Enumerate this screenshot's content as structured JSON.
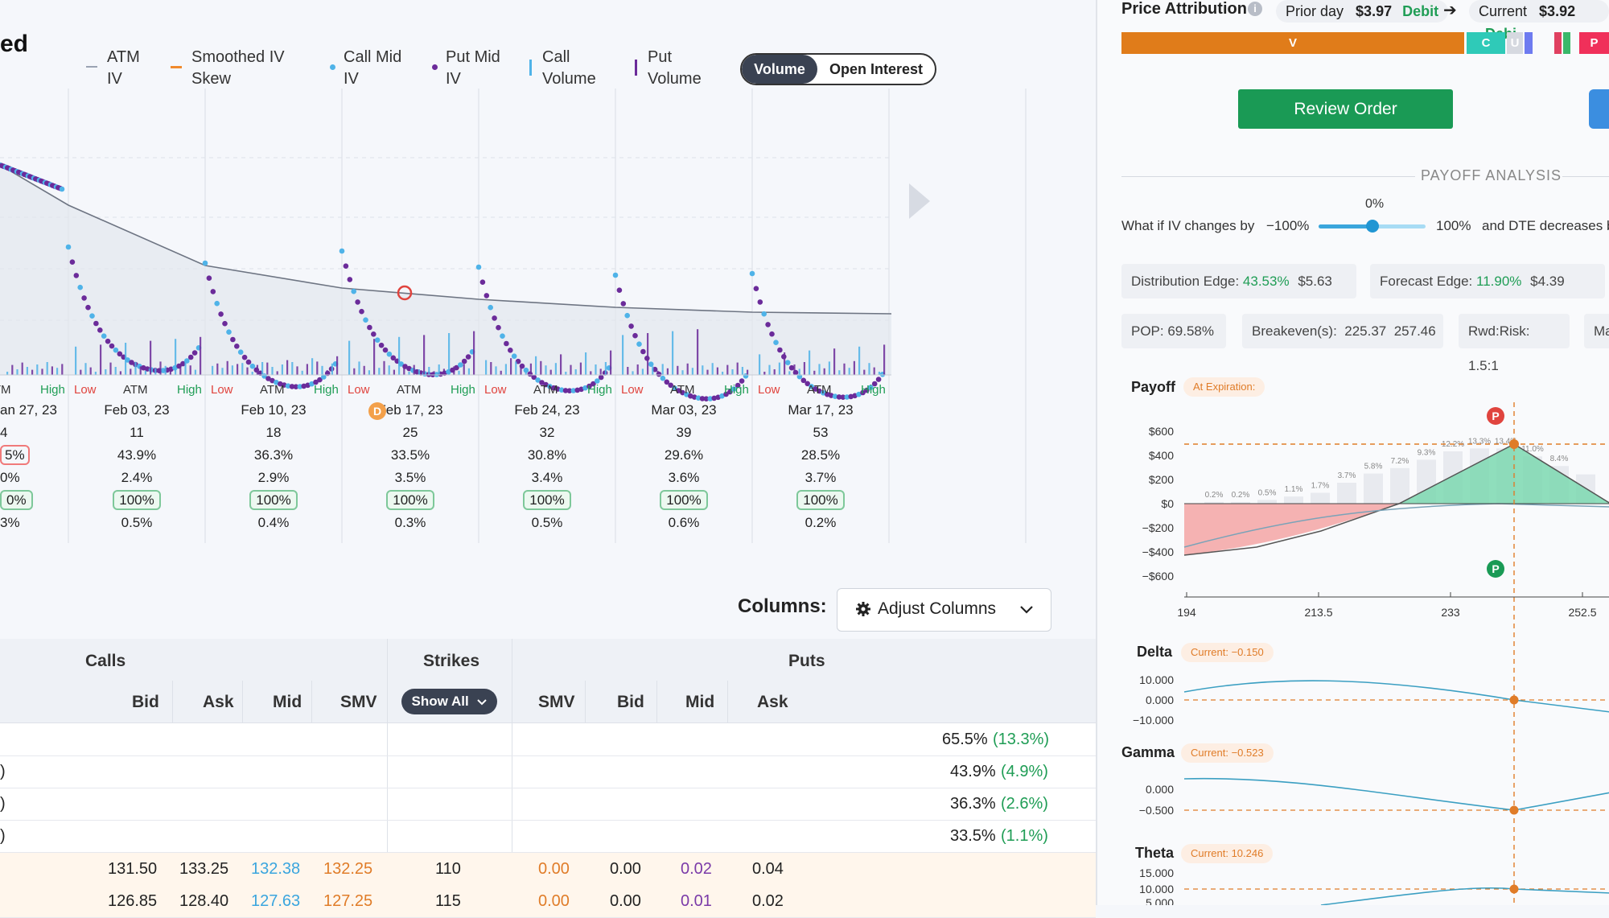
{
  "header": {
    "title_fragment": "ed"
  },
  "legend": [
    {
      "name": "atm-iv",
      "line1": "ATM",
      "line2": "IV",
      "color": "#9aa3b3"
    },
    {
      "name": "smoothed-iv-skew",
      "line1": "Smoothed IV",
      "line2": "Skew",
      "color": "#f08a2c"
    },
    {
      "name": "call-mid-iv",
      "line1": "Call Mid",
      "line2": "IV",
      "color": "#4fb3e8"
    },
    {
      "name": "put-mid-iv",
      "line1": "Put Mid",
      "line2": "IV",
      "color": "#6b2b9a"
    },
    {
      "name": "call-volume",
      "line1": "Call",
      "line2": "Volume",
      "color": "#4fb3e8"
    },
    {
      "name": "put-volume",
      "line1": "Put",
      "line2": "Volume",
      "color": "#6b2b9a"
    }
  ],
  "toggle": {
    "volume": "Volume",
    "open_interest": "Open Interest"
  },
  "strike_labels": {
    "low": "Low",
    "atm": "ATM",
    "high": "High"
  },
  "expirations": [
    {
      "date": "an 27, 23",
      "dte": "4",
      "iv": "5%",
      "ivchg": "0%",
      "pct": "0%",
      "move": "3%"
    },
    {
      "date": "Feb 03, 23",
      "dte": "11",
      "iv": "43.9%",
      "ivchg": "2.4%",
      "pct": "100%",
      "move": "0.5%"
    },
    {
      "date": "Feb 10, 23",
      "dte": "18",
      "iv": "36.3%",
      "ivchg": "2.9%",
      "pct": "100%",
      "move": "0.4%"
    },
    {
      "date": "Feb 17, 23",
      "dte": "25",
      "iv": "33.5%",
      "ivchg": "3.5%",
      "pct": "100%",
      "move": "0.3%"
    },
    {
      "date": "Feb 24, 23",
      "dte": "32",
      "iv": "30.8%",
      "ivchg": "3.4%",
      "pct": "100%",
      "move": "0.5%"
    },
    {
      "date": "Mar 03, 23",
      "dte": "39",
      "iv": "29.6%",
      "ivchg": "3.6%",
      "pct": "100%",
      "move": "0.6%"
    },
    {
      "date": "Mar 17, 23",
      "dte": "53",
      "iv": "28.5%",
      "ivchg": "3.7%",
      "pct": "100%",
      "move": "0.2%"
    }
  ],
  "dividend_badge": "D",
  "columns": {
    "label": "Columns:",
    "adjust": "Adjust Columns"
  },
  "chain": {
    "calls_header": "Calls",
    "strikes_header": "Strikes",
    "puts_header": "Puts",
    "call_cols": [
      "Bid",
      "Ask",
      "Mid",
      "SMV"
    ],
    "put_cols": [
      "SMV",
      "Bid",
      "Mid",
      "Ask"
    ],
    "show_all": "Show All",
    "summary_rows": [
      {
        "left": "",
        "iv": "65.5%",
        "chg": "(13.3%)"
      },
      {
        "left": ")",
        "iv": "43.9%",
        "chg": "(4.9%)"
      },
      {
        "left": ")",
        "iv": "36.3%",
        "chg": "(2.6%)"
      },
      {
        "left": ")",
        "iv": "33.5%",
        "chg": "(1.1%)"
      }
    ],
    "rows": [
      {
        "c_bid": "131.50",
        "c_ask": "133.25",
        "c_mid": "132.38",
        "c_smv": "132.25",
        "strike": "110",
        "p_smv": "0.00",
        "p_bid": "0.00",
        "p_mid": "0.02",
        "p_ask": "0.04"
      },
      {
        "c_bid": "126.85",
        "c_ask": "128.40",
        "c_mid": "127.63",
        "c_smv": "127.25",
        "strike": "115",
        "p_smv": "0.00",
        "p_bid": "0.00",
        "p_mid": "0.01",
        "p_ask": "0.02"
      }
    ]
  },
  "price_attribution": {
    "title": "Price Attribution",
    "prior_label": "Prior day",
    "prior_value": "$3.97",
    "prior_type": "Debit",
    "current_label": "Current",
    "current_value": "$3.92",
    "current_type": "Debi",
    "bar_v": "V",
    "bar_c": "C",
    "bar_u": "U",
    "bar_p": "P"
  },
  "review_order": "Review Order",
  "payoff_analysis": {
    "heading": "PAYOFF ANALYSIS",
    "iv_question": "What if IV changes by",
    "slider_min": "−100%",
    "slider_max": "100%",
    "slider_value": "0%",
    "slider_fraction": 0.5,
    "dte_text": "and DTE decreases b",
    "distribution_edge_label": "Distribution Edge:",
    "distribution_edge_pct": "43.53%",
    "distribution_edge_val": "$5.63",
    "forecast_edge_label": "Forecast Edge:",
    "forecast_edge_pct": "11.90%",
    "forecast_edge_val": "$4.39",
    "pop": "POP: 69.58%",
    "breakevens": "Breakeven(s):  225.37  257.46",
    "rwd_risk": "Rwd:Risk: 1.5:1",
    "ma": "Ma"
  },
  "payoff": {
    "label": "Payoff",
    "badge": "At Expiration:",
    "y_ticks": [
      "$600",
      "$400",
      "$200",
      "$0",
      "−$200",
      "−$400",
      "−$600"
    ],
    "x_ticks": [
      "194",
      "213.5",
      "233",
      "252.5"
    ],
    "dist_labels": [
      "0.2%",
      "0.2%",
      "0.5%",
      "1.1%",
      "1.7%",
      "3.7%",
      "5.8%",
      "7.2%",
      "9.3%",
      "12.2%",
      "13.3%",
      "13.4%",
      "11.0%",
      "8.4%"
    ],
    "marker_p": "P"
  },
  "greeks": [
    {
      "name": "Delta",
      "current": "Current: −0.150",
      "ticks": [
        "10.000",
        "0.000",
        "−10.000"
      ]
    },
    {
      "name": "Gamma",
      "current": "Current: −0.523",
      "ticks": [
        "0.000",
        "−0.500"
      ]
    },
    {
      "name": "Theta",
      "current": "Current: 10.246",
      "ticks": [
        "15.000",
        "10.000",
        "5.000"
      ]
    }
  ]
}
